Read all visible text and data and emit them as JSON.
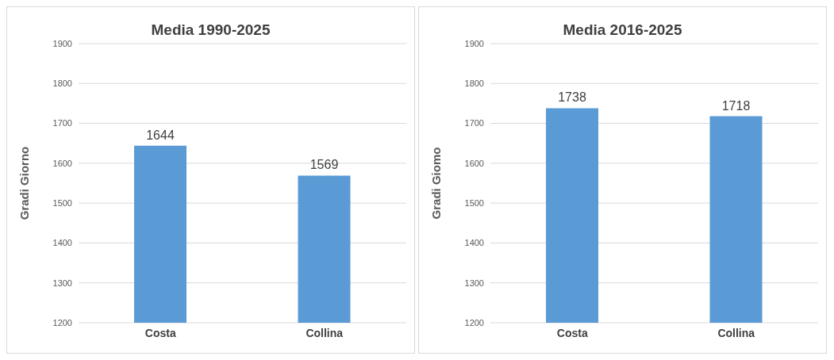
{
  "chart_data": [
    {
      "type": "bar",
      "title": "Media 1990-2025",
      "ylabel": "Gradi Giorno",
      "categories": [
        "Costa",
        "Collina"
      ],
      "values": [
        1644,
        1569
      ],
      "color": "#5b9bd5",
      "ylim": [
        1200,
        1900
      ],
      "yticks": [
        1200,
        1300,
        1400,
        1500,
        1600,
        1700,
        1800,
        1900
      ],
      "grid": "y",
      "data_labels": true,
      "legend": false
    },
    {
      "type": "bar",
      "title": "Media 2016-2025",
      "ylabel": "Gradi Giomo",
      "categories": [
        "Costa",
        "Collina"
      ],
      "values": [
        1738,
        1718
      ],
      "color": "#5b9bd5",
      "ylim": [
        1200,
        1900
      ],
      "yticks": [
        1200,
        1300,
        1400,
        1500,
        1600,
        1700,
        1800,
        1900
      ],
      "grid": "y",
      "data_labels": true,
      "legend": false
    }
  ]
}
